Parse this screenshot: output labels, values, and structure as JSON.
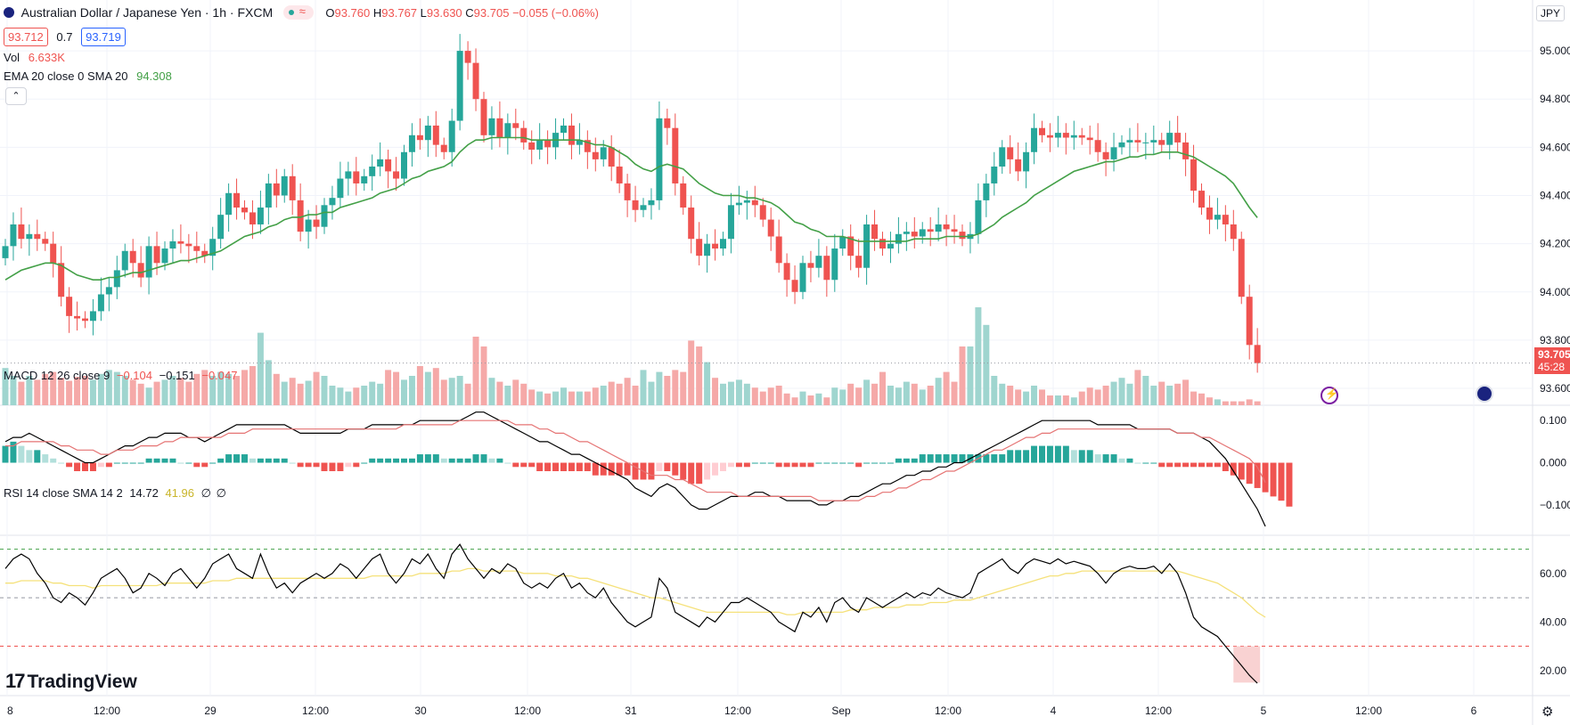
{
  "header": {
    "symbol_title": "Australian Dollar / Japanese Yen · 1h · FXCM",
    "ohlc": {
      "o_label": "O",
      "o": "93.760",
      "h_label": "H",
      "h": "93.767",
      "l_label": "L",
      "l": "93.630",
      "c_label": "C",
      "c": "93.705",
      "change": "−0.055 (−0.06%)"
    },
    "bid": "93.712",
    "spread": "0.7",
    "ask": "93.719",
    "vol_label": "Vol",
    "vol_value": "6.633K",
    "ema_label": "EMA 20 close 0 SMA 20",
    "ema_value": "94.308"
  },
  "currency_button": "JPY",
  "last_price": {
    "value": "93.705",
    "countdown": "45:28"
  },
  "macd_legend": {
    "label": "MACD 12 26 close 9",
    "hist": "−0.104",
    "macd": "−0.151",
    "signal": "−0.047"
  },
  "rsi_legend": {
    "label": "RSI 14 close SMA 14 2",
    "rsi": "14.72",
    "sma": "41.96",
    "extra1": "∅",
    "extra2": "∅"
  },
  "logo_text": "TradingView",
  "colors": {
    "up": "#26a69a",
    "down": "#ef5350",
    "ema": "#43a047",
    "macd": "#000000",
    "signal": "#e57373",
    "rsi": "#000000",
    "rsi_sma": "#f5e17a"
  },
  "chart_data": {
    "type": "candlestick",
    "price_axis": {
      "ticks": [
        "95.000",
        "94.800",
        "94.600",
        "94.400",
        "94.200",
        "94.000",
        "93.800",
        "93.600"
      ],
      "range": [
        93.53,
        95.1
      ]
    },
    "macd_axis": {
      "ticks": [
        "0.100",
        "0.000",
        "−0.100"
      ],
      "range": [
        -0.17,
        0.13
      ]
    },
    "rsi_axis": {
      "ticks": [
        "60.00",
        "40.00",
        "20.00"
      ],
      "range": [
        10,
        75
      ],
      "bands": [
        70,
        50,
        30
      ]
    },
    "time_labels": [
      "8",
      "12:00",
      "29",
      "12:00",
      "30",
      "12:00",
      "31",
      "12:00",
      "Sep",
      "12:00",
      "4",
      "12:00",
      "5",
      "12:00",
      "6",
      "12:00"
    ],
    "closes": [
      94.19,
      94.28,
      94.22,
      94.24,
      94.22,
      94.2,
      94.12,
      93.98,
      93.9,
      93.89,
      93.88,
      93.92,
      93.99,
      94.02,
      94.09,
      94.17,
      94.12,
      94.06,
      94.19,
      94.12,
      94.18,
      94.21,
      94.2,
      94.19,
      94.17,
      94.15,
      94.22,
      94.32,
      94.41,
      94.35,
      94.33,
      94.28,
      94.35,
      94.45,
      94.4,
      94.48,
      94.38,
      94.25,
      94.3,
      94.27,
      94.36,
      94.39,
      94.47,
      94.5,
      94.45,
      94.48,
      94.52,
      94.55,
      94.5,
      94.47,
      94.58,
      94.65,
      94.63,
      94.69,
      94.61,
      94.58,
      94.71,
      95.0,
      94.95,
      94.8,
      94.65,
      94.72,
      94.64,
      94.7,
      94.68,
      94.62,
      94.59,
      94.63,
      94.6,
      94.66,
      94.69,
      94.61,
      94.63,
      94.58,
      94.55,
      94.6,
      94.52,
      94.45,
      94.38,
      94.34,
      94.36,
      94.38,
      94.72,
      94.68,
      94.45,
      94.35,
      94.22,
      94.15,
      94.2,
      94.18,
      94.22,
      94.36,
      94.37,
      94.38,
      94.36,
      94.3,
      94.23,
      94.12,
      94.05,
      94.0,
      94.12,
      94.1,
      94.15,
      94.05,
      94.18,
      94.23,
      94.15,
      94.1,
      94.28,
      94.22,
      94.18,
      94.2,
      94.24,
      94.25,
      94.23,
      94.26,
      94.25,
      94.28,
      94.26,
      94.25,
      94.22,
      94.24,
      94.38,
      94.45,
      94.52,
      94.6,
      94.55,
      94.5,
      94.58,
      94.68,
      94.65,
      94.64,
      94.66,
      94.64,
      94.65,
      94.64,
      94.63,
      94.58,
      94.55,
      94.6,
      94.62,
      94.63,
      94.62,
      94.62,
      94.63,
      94.61,
      94.66,
      94.62,
      94.55,
      94.42,
      94.35,
      94.3,
      94.32,
      94.28,
      94.22,
      93.98,
      93.78,
      93.705
    ],
    "volume_heights": [
      38,
      30,
      24,
      30,
      26,
      32,
      34,
      28,
      25,
      29,
      30,
      26,
      32,
      36,
      34,
      30,
      26,
      22,
      18,
      24,
      26,
      30,
      28,
      24,
      32,
      36,
      30,
      34,
      32,
      30,
      36,
      40,
      74,
      46,
      32,
      24,
      28,
      22,
      25,
      34,
      30,
      20,
      18,
      14,
      18,
      20,
      24,
      22,
      36,
      34,
      26,
      30,
      40,
      34,
      38,
      26,
      28,
      30,
      22,
      70,
      60,
      28,
      24,
      20,
      26,
      22,
      16,
      14,
      12,
      14,
      18,
      14,
      14,
      14,
      18,
      20,
      24,
      22,
      28,
      20,
      36,
      24,
      34,
      30,
      36,
      34,
      66,
      60,
      44,
      28,
      22,
      24,
      26,
      22,
      18,
      14,
      18,
      20,
      12,
      8,
      14,
      10,
      12,
      8,
      18,
      16,
      22,
      18,
      26,
      22,
      34,
      20,
      18,
      24,
      22,
      16,
      20,
      28,
      34,
      24,
      60,
      60,
      100,
      82,
      30,
      22,
      20,
      16,
      14,
      20,
      16,
      10,
      10,
      10,
      8,
      14,
      18,
      16,
      20,
      24,
      28,
      22,
      36,
      30,
      20,
      24,
      20,
      22,
      26,
      14,
      12,
      8,
      6,
      4,
      4,
      4,
      6,
      4,
      4,
      6,
      10,
      18,
      26,
      30,
      28,
      22,
      30,
      48
    ],
    "ema": [
      94.05,
      94.07,
      94.09,
      94.1,
      94.11,
      94.12,
      94.12,
      94.11,
      94.09,
      94.07,
      94.06,
      94.05,
      94.05,
      94.06,
      94.06,
      94.07,
      94.08,
      94.08,
      94.09,
      94.1,
      94.11,
      94.12,
      94.13,
      94.13,
      94.14,
      94.15,
      94.16,
      94.17,
      94.19,
      94.21,
      94.23,
      94.24,
      94.25,
      94.27,
      94.28,
      94.3,
      94.31,
      94.31,
      94.32,
      94.32,
      94.33,
      94.33,
      94.35,
      94.36,
      94.37,
      94.38,
      94.39,
      94.41,
      94.42,
      94.43,
      94.45,
      94.47,
      94.48,
      94.5,
      94.51,
      94.52,
      94.54,
      94.58,
      94.61,
      94.63,
      94.63,
      94.64,
      94.64,
      94.64,
      94.64,
      94.64,
      94.63,
      94.63,
      94.63,
      94.63,
      94.63,
      94.63,
      94.63,
      94.62,
      94.61,
      94.61,
      94.6,
      94.58,
      94.56,
      94.53,
      94.51,
      94.5,
      94.52,
      94.53,
      94.52,
      94.51,
      94.48,
      94.45,
      94.43,
      94.41,
      94.4,
      94.4,
      94.4,
      94.39,
      94.39,
      94.38,
      94.37,
      94.35,
      94.32,
      94.29,
      94.28,
      94.26,
      94.25,
      94.23,
      94.23,
      94.23,
      94.22,
      94.21,
      94.21,
      94.21,
      94.21,
      94.21,
      94.21,
      94.21,
      94.22,
      94.22,
      94.22,
      94.22,
      94.23,
      94.23,
      94.23,
      94.23,
      94.24,
      94.26,
      94.28,
      94.31,
      94.33,
      94.35,
      94.37,
      94.4,
      94.42,
      94.44,
      94.46,
      94.48,
      94.5,
      94.51,
      94.52,
      94.53,
      94.54,
      94.54,
      94.55,
      94.56,
      94.56,
      94.57,
      94.57,
      94.58,
      94.58,
      94.58,
      94.57,
      94.56,
      94.54,
      94.52,
      94.5,
      94.48,
      94.45,
      94.4,
      94.35,
      94.308
    ],
    "macd_hist": [
      0.04,
      0.05,
      0.04,
      0.03,
      0.03,
      0.02,
      0.01,
      0.0,
      -0.01,
      -0.02,
      -0.02,
      -0.02,
      -0.01,
      -0.01,
      0.0,
      0.0,
      0.0,
      0.0,
      0.01,
      0.01,
      0.01,
      0.01,
      0.0,
      0.0,
      -0.01,
      -0.01,
      0.0,
      0.01,
      0.02,
      0.02,
      0.02,
      0.01,
      0.01,
      0.01,
      0.01,
      0.01,
      0.0,
      -0.01,
      -0.01,
      -0.01,
      -0.02,
      -0.02,
      -0.02,
      -0.01,
      -0.01,
      0.0,
      0.01,
      0.01,
      0.01,
      0.01,
      0.01,
      0.01,
      0.02,
      0.02,
      0.02,
      0.01,
      0.01,
      0.01,
      0.01,
      0.02,
      0.02,
      0.01,
      0.01,
      0.0,
      -0.01,
      -0.01,
      -0.01,
      -0.02,
      -0.02,
      -0.02,
      -0.02,
      -0.02,
      -0.02,
      -0.02,
      -0.03,
      -0.03,
      -0.03,
      -0.03,
      -0.03,
      -0.04,
      -0.04,
      -0.04,
      -0.02,
      -0.02,
      -0.03,
      -0.04,
      -0.05,
      -0.05,
      -0.04,
      -0.03,
      -0.02,
      -0.01,
      -0.01,
      -0.01,
      0.0,
      0.0,
      0.0,
      -0.01,
      -0.01,
      -0.01,
      -0.01,
      -0.01,
      0.0,
      0.0,
      0.0,
      0.0,
      0.0,
      -0.01,
      0.0,
      0.0,
      0.0,
      0.0,
      0.01,
      0.01,
      0.01,
      0.02,
      0.02,
      0.02,
      0.02,
      0.02,
      0.02,
      0.02,
      0.02,
      0.02,
      0.02,
      0.02,
      0.03,
      0.03,
      0.03,
      0.04,
      0.04,
      0.04,
      0.04,
      0.04,
      0.03,
      0.03,
      0.03,
      0.02,
      0.02,
      0.02,
      0.01,
      0.01,
      0.0,
      0.0,
      0.0,
      -0.01,
      -0.01,
      -0.01,
      -0.01,
      -0.01,
      -0.01,
      -0.01,
      -0.01,
      -0.02,
      -0.03,
      -0.04,
      -0.05,
      -0.06,
      -0.07,
      -0.08,
      -0.09,
      -0.104
    ],
    "macd_line": [
      0.05,
      0.06,
      0.06,
      0.07,
      0.06,
      0.05,
      0.04,
      0.03,
      0.02,
      0.01,
      0.0,
      0.0,
      0.01,
      0.02,
      0.03,
      0.04,
      0.04,
      0.05,
      0.06,
      0.06,
      0.07,
      0.07,
      0.07,
      0.06,
      0.06,
      0.05,
      0.06,
      0.07,
      0.08,
      0.09,
      0.09,
      0.09,
      0.09,
      0.09,
      0.09,
      0.09,
      0.08,
      0.07,
      0.07,
      0.07,
      0.07,
      0.07,
      0.07,
      0.08,
      0.08,
      0.08,
      0.09,
      0.09,
      0.09,
      0.09,
      0.09,
      0.09,
      0.1,
      0.1,
      0.1,
      0.1,
      0.1,
      0.1,
      0.11,
      0.12,
      0.12,
      0.11,
      0.1,
      0.09,
      0.08,
      0.07,
      0.06,
      0.05,
      0.05,
      0.04,
      0.03,
      0.02,
      0.02,
      0.01,
      0.0,
      -0.01,
      -0.02,
      -0.03,
      -0.04,
      -0.06,
      -0.07,
      -0.08,
      -0.06,
      -0.05,
      -0.06,
      -0.08,
      -0.1,
      -0.11,
      -0.11,
      -0.1,
      -0.09,
      -0.08,
      -0.08,
      -0.08,
      -0.07,
      -0.07,
      -0.08,
      -0.08,
      -0.09,
      -0.09,
      -0.09,
      -0.09,
      -0.1,
      -0.1,
      -0.09,
      -0.09,
      -0.08,
      -0.08,
      -0.07,
      -0.06,
      -0.05,
      -0.05,
      -0.04,
      -0.03,
      -0.03,
      -0.02,
      -0.02,
      -0.01,
      -0.01,
      0.0,
      0.0,
      0.01,
      0.02,
      0.03,
      0.04,
      0.05,
      0.06,
      0.07,
      0.08,
      0.09,
      0.1,
      0.1,
      0.1,
      0.1,
      0.1,
      0.1,
      0.1,
      0.09,
      0.09,
      0.09,
      0.09,
      0.09,
      0.08,
      0.08,
      0.08,
      0.08,
      0.08,
      0.07,
      0.07,
      0.07,
      0.06,
      0.05,
      0.03,
      0.01,
      -0.02,
      -0.05,
      -0.08,
      -0.11,
      -0.151
    ],
    "signal_line": [
      0.04,
      0.04,
      0.05,
      0.05,
      0.05,
      0.05,
      0.05,
      0.04,
      0.04,
      0.03,
      0.03,
      0.03,
      0.02,
      0.02,
      0.03,
      0.03,
      0.03,
      0.04,
      0.04,
      0.04,
      0.05,
      0.05,
      0.06,
      0.06,
      0.06,
      0.06,
      0.06,
      0.06,
      0.07,
      0.07,
      0.07,
      0.08,
      0.08,
      0.08,
      0.08,
      0.08,
      0.08,
      0.08,
      0.08,
      0.08,
      0.08,
      0.08,
      0.08,
      0.08,
      0.08,
      0.08,
      0.08,
      0.08,
      0.08,
      0.08,
      0.09,
      0.09,
      0.09,
      0.09,
      0.09,
      0.09,
      0.09,
      0.1,
      0.1,
      0.1,
      0.1,
      0.1,
      0.1,
      0.1,
      0.09,
      0.09,
      0.09,
      0.08,
      0.08,
      0.07,
      0.07,
      0.06,
      0.05,
      0.05,
      0.04,
      0.03,
      0.02,
      0.01,
      0.0,
      -0.01,
      -0.02,
      -0.03,
      -0.03,
      -0.03,
      -0.04,
      -0.04,
      -0.05,
      -0.06,
      -0.07,
      -0.07,
      -0.07,
      -0.07,
      -0.08,
      -0.08,
      -0.08,
      -0.08,
      -0.08,
      -0.08,
      -0.08,
      -0.08,
      -0.08,
      -0.08,
      -0.09,
      -0.09,
      -0.09,
      -0.09,
      -0.09,
      -0.09,
      -0.08,
      -0.08,
      -0.07,
      -0.07,
      -0.06,
      -0.06,
      -0.05,
      -0.04,
      -0.04,
      -0.03,
      -0.02,
      -0.02,
      -0.01,
      0.0,
      0.01,
      0.02,
      0.03,
      0.03,
      0.04,
      0.05,
      0.06,
      0.06,
      0.07,
      0.07,
      0.08,
      0.08,
      0.08,
      0.08,
      0.08,
      0.08,
      0.08,
      0.08,
      0.08,
      0.08,
      0.08,
      0.08,
      0.08,
      0.08,
      0.08,
      0.07,
      0.07,
      0.07,
      0.06,
      0.06,
      0.05,
      0.04,
      0.03,
      0.02,
      0.01,
      -0.01,
      -0.047
    ],
    "rsi": [
      62,
      66,
      68,
      66,
      60,
      56,
      50,
      48,
      52,
      50,
      47,
      52,
      58,
      60,
      62,
      58,
      52,
      54,
      60,
      58,
      55,
      60,
      62,
      58,
      54,
      58,
      64,
      66,
      68,
      62,
      60,
      58,
      68,
      60,
      54,
      56,
      52,
      56,
      58,
      60,
      58,
      60,
      64,
      62,
      58,
      62,
      66,
      68,
      60,
      56,
      60,
      66,
      64,
      68,
      62,
      58,
      68,
      72,
      66,
      62,
      58,
      62,
      60,
      64,
      62,
      56,
      54,
      56,
      54,
      58,
      60,
      54,
      56,
      52,
      50,
      54,
      48,
      44,
      40,
      38,
      40,
      42,
      58,
      54,
      44,
      42,
      40,
      38,
      42,
      40,
      44,
      48,
      48,
      50,
      48,
      46,
      44,
      40,
      38,
      36,
      44,
      42,
      46,
      40,
      48,
      50,
      46,
      44,
      50,
      48,
      46,
      48,
      50,
      52,
      50,
      52,
      51,
      54,
      52,
      51,
      50,
      52,
      60,
      62,
      64,
      66,
      62,
      60,
      64,
      66,
      65,
      64,
      66,
      64,
      65,
      64,
      63,
      60,
      56,
      60,
      62,
      63,
      62,
      62,
      63,
      60,
      64,
      60,
      52,
      42,
      38,
      36,
      34,
      30,
      26,
      22,
      18,
      14.72
    ],
    "rsi_sma": [
      56,
      56,
      57,
      57,
      57,
      57,
      56,
      56,
      55,
      55,
      55,
      54,
      55,
      55,
      55,
      55,
      55,
      55,
      55,
      55,
      56,
      56,
      56,
      56,
      56,
      56,
      57,
      57,
      57,
      58,
      58,
      58,
      58,
      58,
      58,
      58,
      58,
      58,
      58,
      58,
      58,
      58,
      58,
      58,
      58,
      58,
      59,
      59,
      59,
      59,
      59,
      59,
      60,
      60,
      60,
      60,
      61,
      61,
      62,
      62,
      61,
      61,
      61,
      61,
      61,
      60,
      60,
      60,
      60,
      59,
      59,
      59,
      58,
      58,
      57,
      56,
      55,
      54,
      53,
      52,
      51,
      50,
      50,
      49,
      48,
      47,
      46,
      45,
      44,
      44,
      44,
      44,
      44,
      44,
      44,
      44,
      44,
      44,
      43,
      43,
      44,
      44,
      44,
      44,
      44,
      44,
      45,
      45,
      45,
      46,
      46,
      46,
      46,
      47,
      47,
      47,
      48,
      48,
      48,
      49,
      49,
      49,
      50,
      51,
      52,
      53,
      54,
      55,
      56,
      57,
      58,
      59,
      59,
      60,
      60,
      61,
      61,
      61,
      61,
      61,
      61,
      61,
      61,
      61,
      61,
      61,
      61,
      61,
      60,
      59,
      58,
      57,
      56,
      54,
      52,
      50,
      47,
      44,
      41.96
    ]
  }
}
